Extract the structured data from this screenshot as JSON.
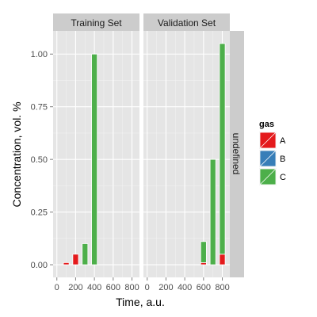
{
  "chart_data": {
    "type": "bar",
    "xlabel": "Time, a.u.",
    "ylabel": "Concentration, vol. %",
    "xlim": [
      -40,
      880
    ],
    "ylim": [
      -0.06,
      1.11
    ],
    "x_ticks": [
      0,
      200,
      400,
      600,
      800
    ],
    "x_tick_labels": [
      "0",
      "200",
      "400",
      "600",
      "800"
    ],
    "y_ticks": [
      0,
      0.25,
      0.5,
      0.75,
      1.0
    ],
    "y_tick_labels": [
      "0.00",
      "0.25",
      "0.50",
      "0.75",
      "1.00"
    ],
    "bar_width": 60,
    "panels": [
      {
        "label": "Training Set",
        "bars": [
          {
            "x": 100,
            "gas": "A",
            "value": 0.01
          },
          {
            "x": 200,
            "gas": "A",
            "value": 0.05
          },
          {
            "x": 300,
            "gas": "C",
            "value": 0.1
          },
          {
            "x": 400,
            "gas": "C",
            "value": 1.0
          }
        ]
      },
      {
        "label": "Validation Set",
        "bars": [
          {
            "x": 600,
            "gas": "A",
            "value": 0.01
          },
          {
            "x": 600,
            "gas": "C",
            "value": 0.1
          },
          {
            "x": 700,
            "gas": "C",
            "value": 0.5
          },
          {
            "x": 800,
            "gas": "A",
            "value": 0.05
          },
          {
            "x": 800,
            "gas": "C",
            "value": 1.0
          }
        ]
      }
    ],
    "row_strip_label": "undefined",
    "legend": {
      "title": "gas",
      "position": "right",
      "entries": [
        {
          "key": "A",
          "label": "A",
          "color": "#e41a1c"
        },
        {
          "key": "B",
          "label": "B",
          "color": "#377eb8"
        },
        {
          "key": "C",
          "label": "C",
          "color": "#4daf4a"
        }
      ]
    },
    "panel_background": "#e5e5e5",
    "strip_background": "#cccccc",
    "grid": true
  }
}
